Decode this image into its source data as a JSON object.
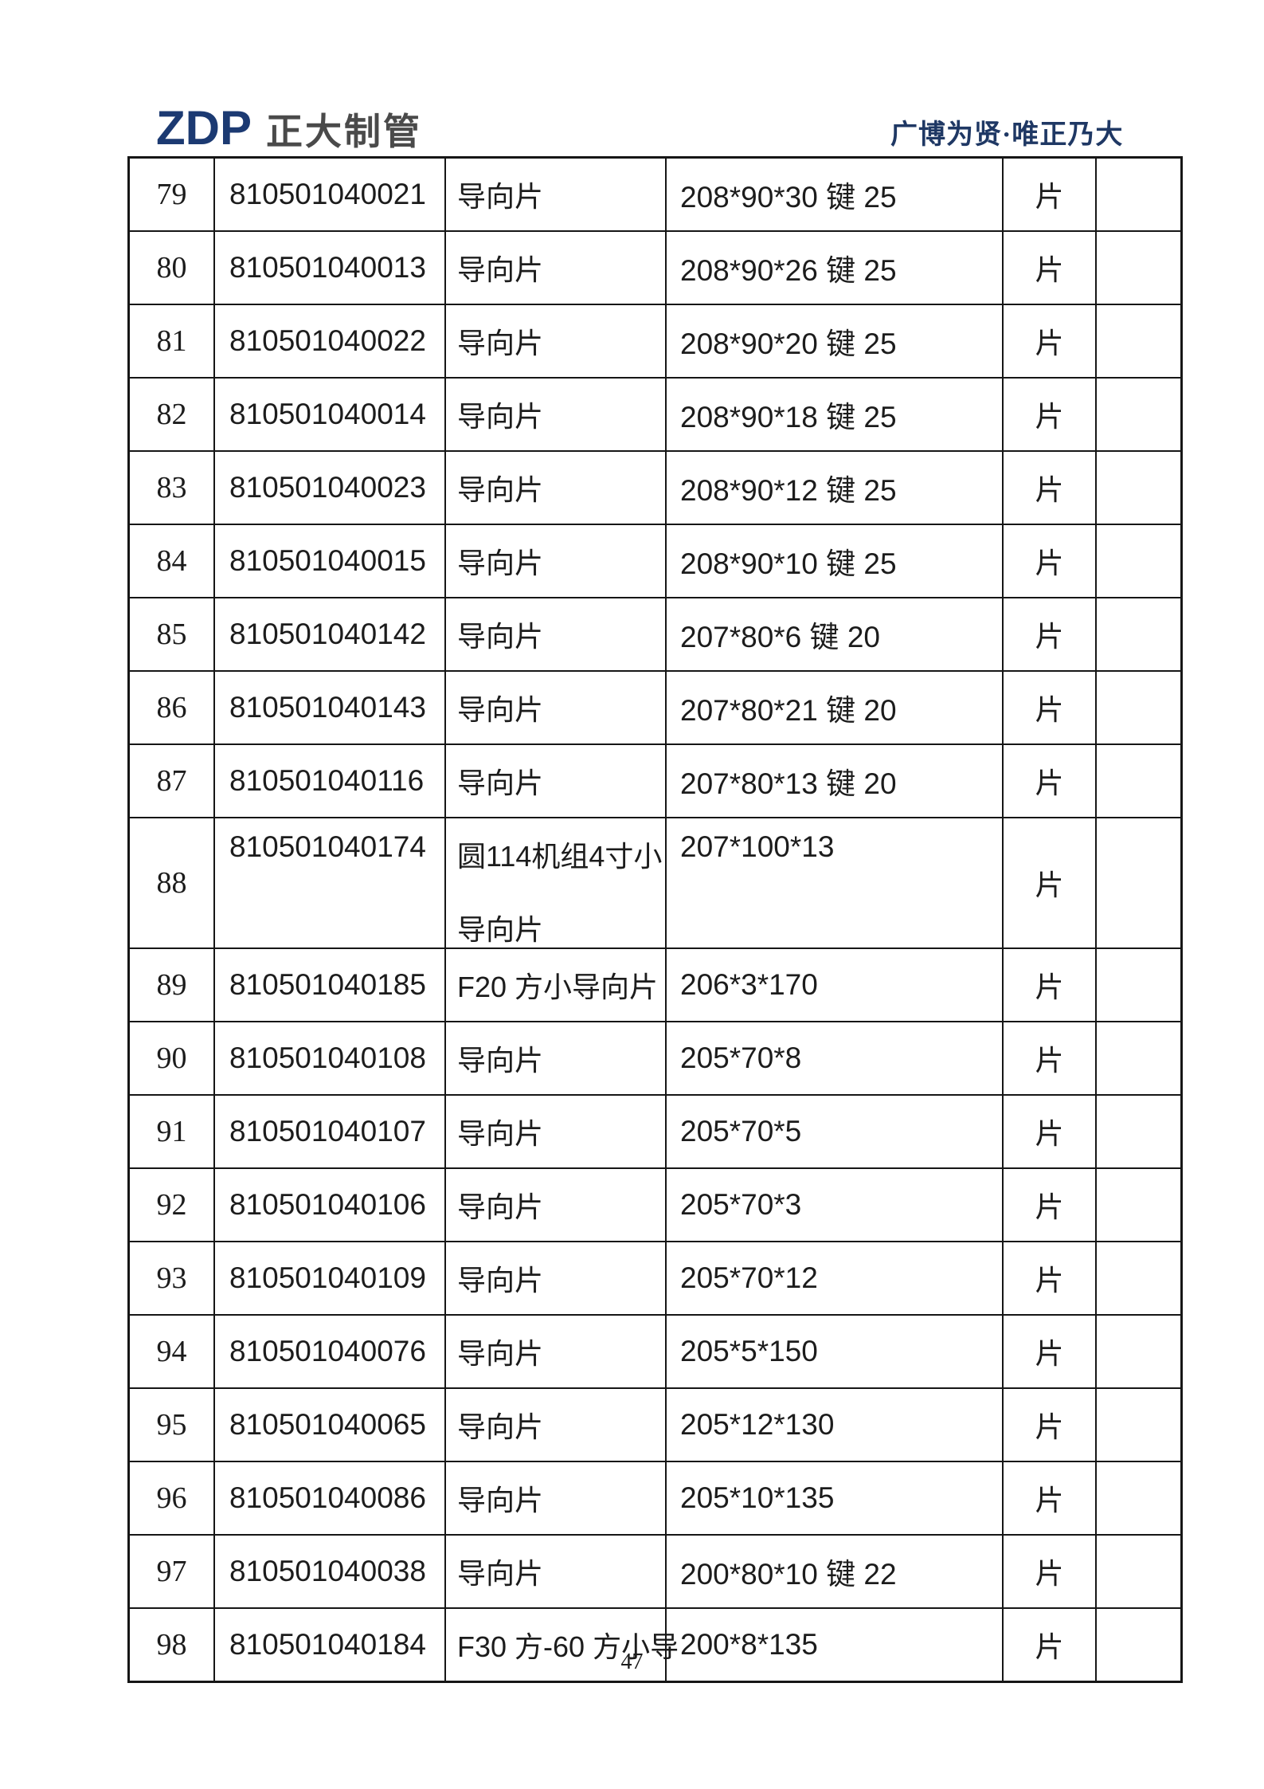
{
  "header": {
    "logo_zdp": "ZDP",
    "logo_name": "正大制管",
    "slogan": "广博为贤·唯正乃大"
  },
  "colors": {
    "logo_blue": "#1c3a72",
    "logo_gray": "#4a4a4a",
    "slogan_blue": "#1f3864"
  },
  "table": {
    "rows": [
      {
        "no": "79",
        "code": "810501040021",
        "name": "导向片",
        "spec": "208*90*30 键 25",
        "unit": "片",
        "note": "",
        "tall": false
      },
      {
        "no": "80",
        "code": "810501040013",
        "name": "导向片",
        "spec": "208*90*26 键 25",
        "unit": "片",
        "note": "",
        "tall": false
      },
      {
        "no": "81",
        "code": "810501040022",
        "name": "导向片",
        "spec": "208*90*20 键 25",
        "unit": "片",
        "note": "",
        "tall": false
      },
      {
        "no": "82",
        "code": "810501040014",
        "name": "导向片",
        "spec": "208*90*18 键 25",
        "unit": "片",
        "note": "",
        "tall": false
      },
      {
        "no": "83",
        "code": "810501040023",
        "name": "导向片",
        "spec": "208*90*12 键 25",
        "unit": "片",
        "note": "",
        "tall": false
      },
      {
        "no": "84",
        "code": "810501040015",
        "name": "导向片",
        "spec": "208*90*10 键 25",
        "unit": "片",
        "note": "",
        "tall": false
      },
      {
        "no": "85",
        "code": "810501040142",
        "name": "导向片",
        "spec": "207*80*6 键 20",
        "unit": "片",
        "note": "",
        "tall": false
      },
      {
        "no": "86",
        "code": "810501040143",
        "name": "导向片",
        "spec": "207*80*21 键 20",
        "unit": "片",
        "note": "",
        "tall": false
      },
      {
        "no": "87",
        "code": "810501040116",
        "name": "导向片",
        "spec": "207*80*13 键 20",
        "unit": "片",
        "note": "",
        "tall": false
      },
      {
        "no": "88",
        "code": "810501040174",
        "name": "圆114机组4寸小导向片",
        "spec": "207*100*13",
        "unit": "片",
        "note": "",
        "tall": true
      },
      {
        "no": "89",
        "code": "810501040185",
        "name": "F20 方小导向片",
        "spec": "206*3*170",
        "unit": "片",
        "note": "",
        "tall": false
      },
      {
        "no": "90",
        "code": "810501040108",
        "name": "导向片",
        "spec": "205*70*8",
        "unit": "片",
        "note": "",
        "tall": false
      },
      {
        "no": "91",
        "code": "810501040107",
        "name": "导向片",
        "spec": "205*70*5",
        "unit": "片",
        "note": "",
        "tall": false
      },
      {
        "no": "92",
        "code": "810501040106",
        "name": "导向片",
        "spec": "205*70*3",
        "unit": "片",
        "note": "",
        "tall": false
      },
      {
        "no": "93",
        "code": "810501040109",
        "name": "导向片",
        "spec": "205*70*12",
        "unit": "片",
        "note": "",
        "tall": false
      },
      {
        "no": "94",
        "code": "810501040076",
        "name": "导向片",
        "spec": "205*5*150",
        "unit": "片",
        "note": "",
        "tall": false
      },
      {
        "no": "95",
        "code": "810501040065",
        "name": "导向片",
        "spec": "205*12*130",
        "unit": "片",
        "note": "",
        "tall": false
      },
      {
        "no": "96",
        "code": "810501040086",
        "name": "导向片",
        "spec": "205*10*135",
        "unit": "片",
        "note": "",
        "tall": false
      },
      {
        "no": "97",
        "code": "810501040038",
        "name": "导向片",
        "spec": "200*80*10 键 22",
        "unit": "片",
        "note": "",
        "tall": false
      },
      {
        "no": "98",
        "code": "810501040184",
        "name": "F30 方-60 方小导",
        "spec": "200*8*135",
        "unit": "片",
        "note": "",
        "tall": false
      }
    ]
  },
  "footer": {
    "page_number": "47"
  }
}
